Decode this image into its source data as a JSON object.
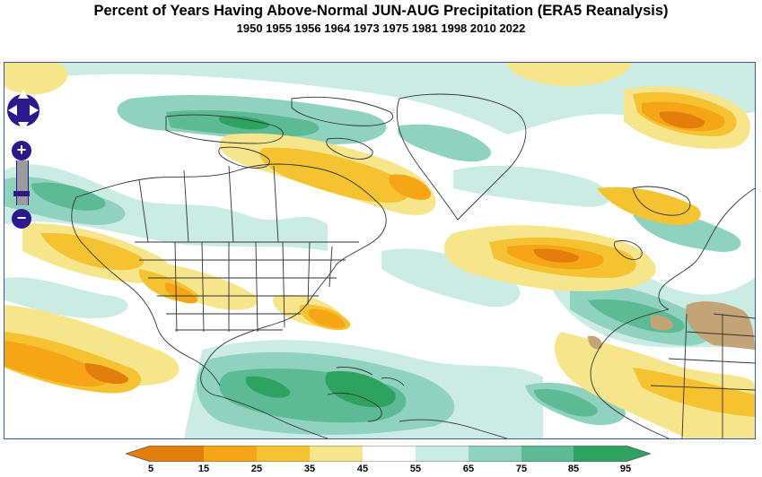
{
  "title": "Percent of Years Having Above-Normal JUN-AUG Precipitation (ERA5 Reanalysis)",
  "subtitle": "1950 1955 1956 1964 1973 1975 1981 1998 2010 2022",
  "colors": {
    "c5_15": "#e37d0c",
    "c15_25": "#f6a517",
    "c25_35": "#f5c332",
    "c35_45": "#f7e58b",
    "c45_55": "#ffffff",
    "c55_65": "#cbece2",
    "c65_75": "#8fd2bd",
    "c75_85": "#5cba95",
    "c85_95": "#2ea35f",
    "land_dry": "#c3a477",
    "border": "#3a5a9a",
    "controls": "#2a1a8c"
  },
  "colorbar": {
    "labels": [
      "5",
      "15",
      "25",
      "35",
      "45",
      "55",
      "65",
      "75",
      "85",
      "95"
    ]
  },
  "controls": {
    "zoom_in": "+",
    "zoom_out": "−"
  }
}
